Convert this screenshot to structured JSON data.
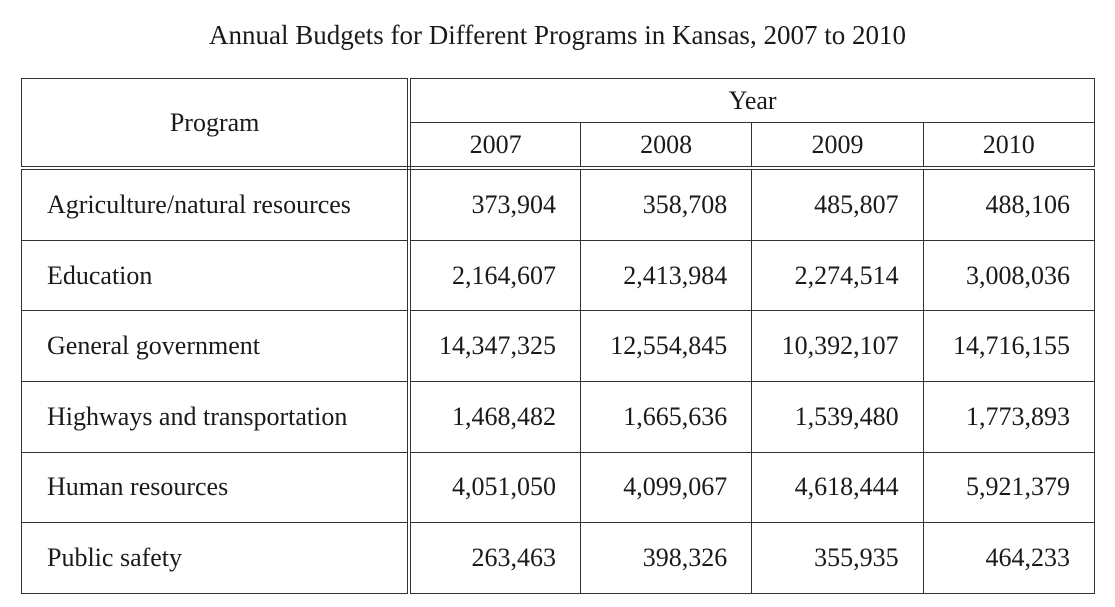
{
  "title": "Annual Budgets for Different Programs in Kansas, 2007 to 2010",
  "table": {
    "program_header": "Program",
    "year_header": "Year",
    "years": [
      "2007",
      "2008",
      "2009",
      "2010"
    ],
    "rows": [
      {
        "program": "Agriculture/natural resources",
        "values": [
          "373,904",
          "358,708",
          "485,807",
          "488,106"
        ]
      },
      {
        "program": "Education",
        "values": [
          "2,164,607",
          "2,413,984",
          "2,274,514",
          "3,008,036"
        ]
      },
      {
        "program": "General government",
        "values": [
          "14,347,325",
          "12,554,845",
          "10,392,107",
          "14,716,155"
        ]
      },
      {
        "program": "Highways and transportation",
        "values": [
          "1,468,482",
          "1,665,636",
          "1,539,480",
          "1,773,893"
        ]
      },
      {
        "program": "Human resources",
        "values": [
          "4,051,050",
          "4,099,067",
          "4,618,444",
          "5,921,379"
        ]
      },
      {
        "program": "Public safety",
        "values": [
          "263,463",
          "398,326",
          "355,935",
          "464,233"
        ]
      }
    ]
  }
}
